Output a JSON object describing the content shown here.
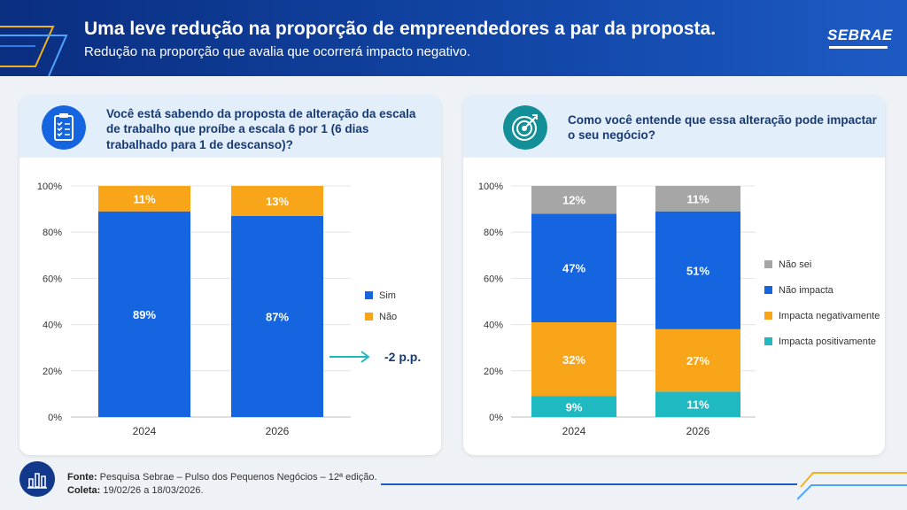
{
  "header": {
    "title": "Uma leve redução na proporção de empreendedores a par da proposta.",
    "subtitle": "Redução na proporção que avalia que ocorrerá impacto negativo.",
    "logo": "SEBRAE"
  },
  "left_card": {
    "icon": "clipboard-checklist-icon",
    "question": "Você está sabendo da proposta de alteração da escala de trabalho que proíbe a escala 6 por 1 (6 dias trabalhado para 1 de descanso)?",
    "change_label": "-2 p.p."
  },
  "right_card": {
    "icon": "target-icon",
    "question": "Como você entende que essa alteração pode impactar o seu negócio?"
  },
  "footer": {
    "icon": "bar-chart-icon",
    "source_label": "Fonte:",
    "source_text": "Pesquisa Sebrae – Pulso dos Pequenos Negócios – 12ª edição.",
    "collection_label": "Coleta:",
    "collection_text": "19/02/26 a 18/03/2026."
  },
  "colors": {
    "header": "#0a2e80",
    "blue": "#1565e0",
    "orange": "#f9a51a",
    "gray": "#a6a6a6",
    "teal": "#1fb9c1",
    "accent": "#f2b21c"
  },
  "chart_data": [
    {
      "type": "bar",
      "stacked": true,
      "categories": [
        "2024",
        "2026"
      ],
      "yticks": [
        "0%",
        "20%",
        "40%",
        "60%",
        "80%",
        "100%"
      ],
      "ylim": [
        0,
        100
      ],
      "series": [
        {
          "name": "Sim",
          "color": "#1565e0",
          "values": [
            89,
            87
          ],
          "labels": [
            "89%",
            "87%"
          ]
        },
        {
          "name": "Não",
          "color": "#f9a51a",
          "values": [
            11,
            13
          ],
          "labels": [
            "11%",
            "13%"
          ]
        }
      ],
      "legend": "right",
      "grid": true
    },
    {
      "type": "bar",
      "stacked": true,
      "categories": [
        "2024",
        "2026"
      ],
      "yticks": [
        "0%",
        "20%",
        "40%",
        "60%",
        "80%",
        "100%"
      ],
      "ylim": [
        0,
        100
      ],
      "series": [
        {
          "name": "Impacta positivamente",
          "color": "#1fb9c1",
          "values": [
            9,
            11
          ],
          "labels": [
            "9%",
            "11%"
          ]
        },
        {
          "name": "Impacta negativamente",
          "color": "#f9a51a",
          "values": [
            32,
            27
          ],
          "labels": [
            "32%",
            "27%"
          ]
        },
        {
          "name": "Não impacta",
          "color": "#1565e0",
          "values": [
            47,
            51
          ],
          "labels": [
            "47%",
            "51%"
          ]
        },
        {
          "name": "Não sei",
          "color": "#a6a6a6",
          "values": [
            12,
            11
          ],
          "labels": [
            "12%",
            "11%"
          ]
        }
      ],
      "legend_order": [
        "Não sei",
        "Não impacta",
        "Impacta negativamente",
        "Impacta positivamente"
      ],
      "legend": "right",
      "grid": true
    }
  ]
}
